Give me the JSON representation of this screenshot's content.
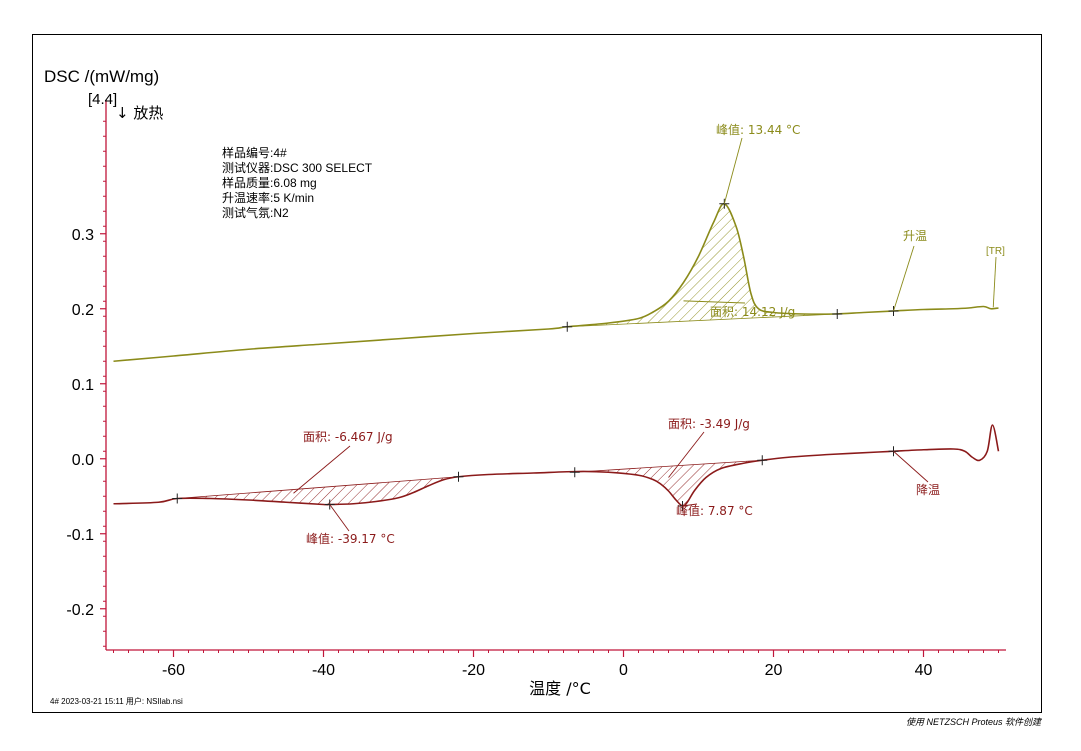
{
  "chart_data": {
    "type": "line",
    "ylabel": "DSC /(mW/mg)",
    "ylabel_scale": "[4.4]",
    "exo_label": "↓ 放热",
    "xlabel": "温度 /°C",
    "xlim": [
      -69,
      51
    ],
    "ylim": [
      -0.255,
      0.465
    ],
    "x_ticks": [
      -60,
      -40,
      -20,
      0,
      20,
      40
    ],
    "y_ticks": [
      -0.2,
      -0.1,
      0.0,
      0.1,
      0.2,
      0.3
    ],
    "y_tick_labels": [
      "-0.2",
      "-0.1",
      "0.0",
      "0.1",
      "0.2",
      "0.3"
    ],
    "info": [
      {
        "key": "样品编号",
        "value": "4#"
      },
      {
        "key": "测试仪器",
        "value": "DSC 300 SELECT"
      },
      {
        "key": "样品质量",
        "value": "6.08 mg"
      },
      {
        "key": "升温速率",
        "value": "5 K/min"
      },
      {
        "key": "测试气氛",
        "value": "N2"
      }
    ],
    "series": [
      {
        "name": "升温",
        "color": "#8b8b1a",
        "x": [
          -68,
          -60,
          -50,
          -40,
          -30,
          -20,
          -10,
          -7.5,
          -2,
          2,
          4,
          6,
          8,
          10,
          12,
          13.44,
          15,
          16,
          17,
          18,
          20,
          24,
          28,
          32,
          36,
          40,
          44,
          46,
          48,
          49,
          50
        ],
        "y": [
          0.13,
          0.137,
          0.146,
          0.153,
          0.16,
          0.167,
          0.173,
          0.176,
          0.181,
          0.187,
          0.196,
          0.21,
          0.235,
          0.27,
          0.315,
          0.34,
          0.31,
          0.27,
          0.22,
          0.2,
          0.195,
          0.193,
          0.193,
          0.195,
          0.197,
          0.199,
          0.2,
          0.201,
          0.203,
          0.2,
          0.201
        ]
      },
      {
        "name": "降温",
        "color": "#8b1a1a",
        "x": [
          -68,
          -62,
          -59.5,
          -55,
          -50,
          -45,
          -40,
          -39.17,
          -36,
          -33,
          -30,
          -28,
          -26,
          -24,
          -22,
          -18,
          -12,
          -6,
          -2,
          2,
          4,
          5,
          6,
          7,
          7.87,
          8.5,
          9.5,
          11,
          13,
          16,
          18.5,
          22,
          28,
          34,
          36,
          40,
          44,
          45.5,
          46.5,
          47.5,
          48.5,
          49.2,
          50
        ],
        "y": [
          -0.06,
          -0.058,
          -0.053,
          -0.053,
          -0.055,
          -0.058,
          -0.061,
          -0.061,
          -0.06,
          -0.057,
          -0.052,
          -0.045,
          -0.036,
          -0.028,
          -0.024,
          -0.021,
          -0.019,
          -0.017,
          -0.018,
          -0.022,
          -0.028,
          -0.034,
          -0.043,
          -0.055,
          -0.063,
          -0.058,
          -0.042,
          -0.025,
          -0.013,
          -0.006,
          -0.002,
          0.002,
          0.006,
          0.009,
          0.01,
          0.012,
          0.013,
          0.01,
          0.002,
          -0.002,
          0.01,
          0.045,
          0.01
        ]
      }
    ],
    "annotations": {
      "heat_peak": "峰值: 13.44 °C",
      "heat_area": "面积: 14.12 J/g",
      "heat_label": "升温",
      "heat_tr": "[TR]",
      "cool_area1": "面积: -6.467 J/g",
      "cool_peak1": "峰值: -39.17 °C",
      "cool_area2": "面积: -3.49 J/g",
      "cool_peak2": "峰值: 7.87 °C",
      "cool_label": "降温"
    },
    "heat_baseline": [
      [
        -7.5,
        0.176
      ],
      [
        28.5,
        0.193
      ]
    ],
    "heat_peak_point": [
      13.44,
      0.34
    ],
    "heat_end_marker": [
      36,
      0.197
    ],
    "cool_baseline1": [
      [
        -59.5,
        -0.053
      ],
      [
        -22,
        -0.024
      ]
    ],
    "cool_peak1_point": [
      -39.17,
      -0.061
    ],
    "cool_baseline2": [
      [
        -6.5,
        -0.018
      ],
      [
        18.5,
        -0.002
      ]
    ],
    "cool_peak2_point": [
      7.87,
      -0.063
    ],
    "cool_end_marker": [
      36,
      0.01
    ],
    "grid": false,
    "legend": "none"
  },
  "footer": {
    "left": "4#   2023-03-21 15:11   用户: NSIlab.nsi",
    "right": "使用 NETZSCH Proteus 软件创建"
  }
}
